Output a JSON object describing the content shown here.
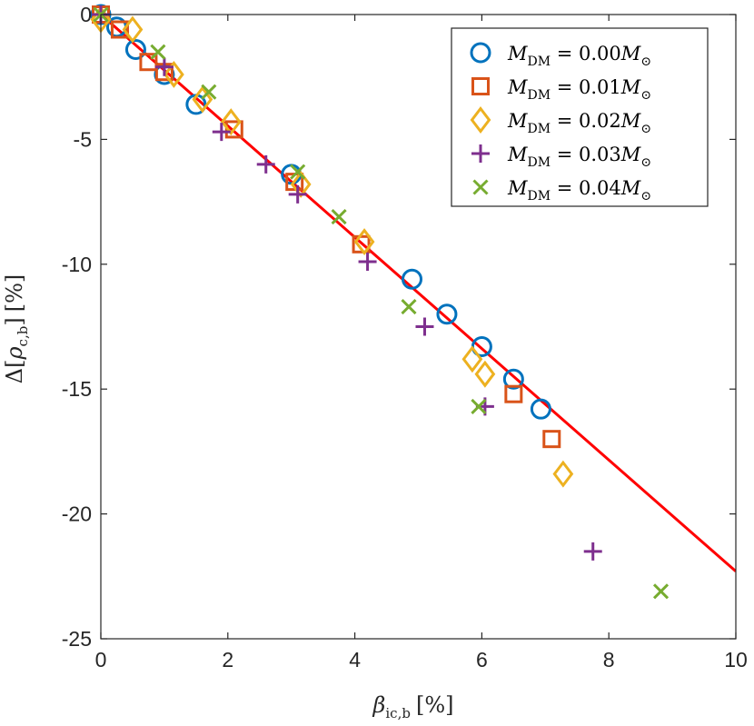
{
  "chart_data": {
    "type": "scatter",
    "title": "",
    "xlabel": "β_ic,b [%]",
    "ylabel": "Δ[ρ_c,b] [%]",
    "xlabel_parts": {
      "base": "β",
      "sub": "ic,b",
      "unit": "[%]"
    },
    "ylabel_parts": {
      "prefix": "Δ[",
      "base": "ρ",
      "sub": "c,b",
      "suffix": "]",
      "unit": "[%]"
    },
    "xlim": [
      0,
      10
    ],
    "ylim": [
      -25,
      0
    ],
    "x_ticks": [
      0,
      2,
      4,
      6,
      8,
      10
    ],
    "y_ticks": [
      0,
      -5,
      -10,
      -15,
      -20,
      -25
    ],
    "x_tick_labels": [
      "0",
      "2",
      "4",
      "6",
      "8",
      "10"
    ],
    "y_tick_labels": [
      "0",
      "-5",
      "-10",
      "-15",
      "-20",
      "-25"
    ],
    "grid": false,
    "legend_position": "top-right",
    "series": [
      {
        "name": "M_DM = 0.00M_⊙",
        "legend_mass": "0.00",
        "marker": "circle",
        "color": "#0072BD",
        "x": [
          0.0,
          0.25,
          0.55,
          1.0,
          1.5,
          3.0,
          4.9,
          5.45,
          6.0,
          6.5,
          6.93
        ],
        "y": [
          0.0,
          -0.5,
          -1.4,
          -2.4,
          -3.6,
          -6.4,
          -10.6,
          -12.0,
          -13.3,
          -14.6,
          -15.8
        ]
      },
      {
        "name": "M_DM = 0.01M_⊙",
        "legend_mass": "0.01",
        "marker": "square",
        "color": "#D95319",
        "x": [
          0.0,
          0.3,
          0.75,
          1.0,
          2.1,
          3.05,
          4.1,
          6.5,
          7.1
        ],
        "y": [
          0.0,
          -0.6,
          -1.9,
          -2.3,
          -4.6,
          -6.7,
          -9.2,
          -15.2,
          -17.0
        ]
      },
      {
        "name": "M_DM = 0.02M_⊙",
        "legend_mass": "0.02",
        "marker": "diamond",
        "color": "#EDB120",
        "x": [
          0.0,
          0.5,
          1.15,
          1.6,
          2.05,
          3.15,
          4.15,
          5.85,
          6.05,
          7.28
        ],
        "y": [
          -0.2,
          -0.6,
          -2.4,
          -3.4,
          -4.3,
          -6.8,
          -9.1,
          -13.8,
          -14.4,
          -18.4
        ]
      },
      {
        "name": "M_DM = 0.03M_⊙",
        "legend_mass": "0.03",
        "marker": "plus",
        "color": "#7E2F8E",
        "x": [
          0.0,
          1.0,
          1.9,
          2.6,
          3.1,
          4.2,
          5.1,
          6.05,
          7.75
        ],
        "y": [
          0.0,
          -2.1,
          -4.7,
          -6.0,
          -7.2,
          -9.9,
          -12.5,
          -15.7,
          -21.5
        ]
      },
      {
        "name": "M_DM = 0.04M_⊙",
        "legend_mass": "0.04",
        "marker": "x",
        "color": "#77AC30",
        "x": [
          0.0,
          0.9,
          1.7,
          3.1,
          3.75,
          4.85,
          5.95,
          8.82
        ],
        "y": [
          0.0,
          -1.5,
          -3.1,
          -6.3,
          -8.1,
          -11.7,
          -15.7,
          -23.1
        ]
      }
    ],
    "fit_line": {
      "name": "linear fit",
      "color": "#FF0000",
      "x": [
        0,
        10
      ],
      "y": [
        0,
        -22.3
      ]
    }
  }
}
